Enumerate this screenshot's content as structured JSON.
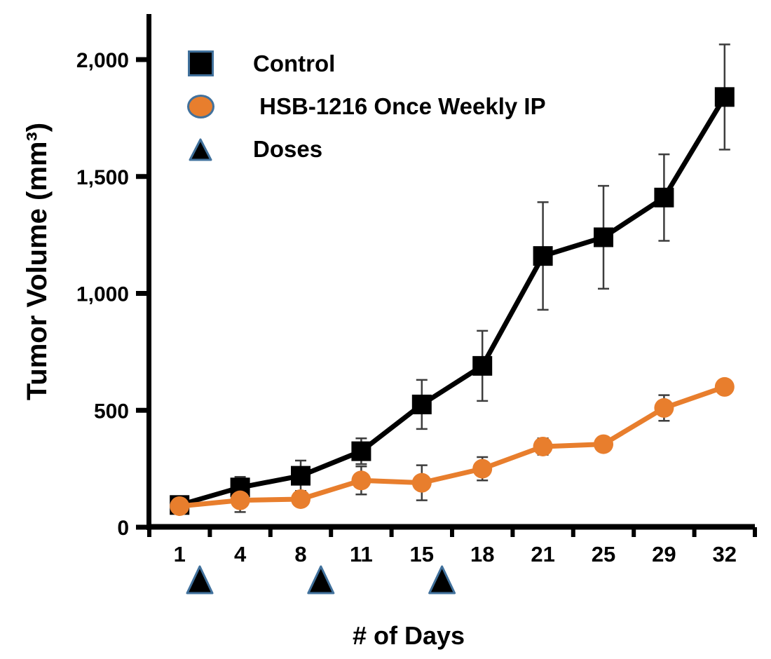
{
  "colors": {
    "background": "#FFFFFF",
    "control_series": "#000000",
    "treatment_series": "#E87E2D",
    "marker_outline": "#41719C",
    "error_bar": "#3D3D3D",
    "axis": "#000000",
    "text": "#000000"
  },
  "chart_data": {
    "type": "line",
    "title": "",
    "xlabel": "# of Days",
    "ylabel": "Tumor Volume (mm³)",
    "grid": false,
    "legend_position": "top-left",
    "categories": [
      1,
      4,
      8,
      11,
      15,
      18,
      21,
      25,
      29,
      32
    ],
    "series": [
      {
        "name": "Control",
        "marker": "square",
        "color": "#000000",
        "values": [
          95,
          170,
          220,
          325,
          525,
          690,
          1160,
          1240,
          1410,
          1840
        ],
        "errors": [
          0,
          45,
          65,
          55,
          105,
          150,
          230,
          220,
          185,
          225
        ]
      },
      {
        "name": " HSB-1216 Once Weekly IP",
        "marker": "circle",
        "color": "#E87E2D",
        "values": [
          90,
          115,
          120,
          200,
          190,
          250,
          345,
          355,
          510,
          600
        ],
        "errors": [
          0,
          50,
          30,
          60,
          75,
          50,
          35,
          0,
          55,
          25
        ]
      }
    ],
    "dose_markers": {
      "label": "Doses",
      "marker": "triangle",
      "days": [
        2,
        9,
        16
      ],
      "fill": "#000000",
      "outline": "#41719C"
    },
    "y_axis": {
      "min": 0,
      "max": 2000,
      "ticks": [
        0,
        500,
        1000,
        1500,
        2000
      ],
      "tick_labels": [
        "0",
        "500",
        "1,000",
        "1,500",
        "2,000"
      ]
    },
    "x_axis": {
      "tick_labels": [
        "1",
        "4",
        "8",
        "11",
        "15",
        "18",
        "21",
        "25",
        "29",
        "32"
      ]
    }
  }
}
